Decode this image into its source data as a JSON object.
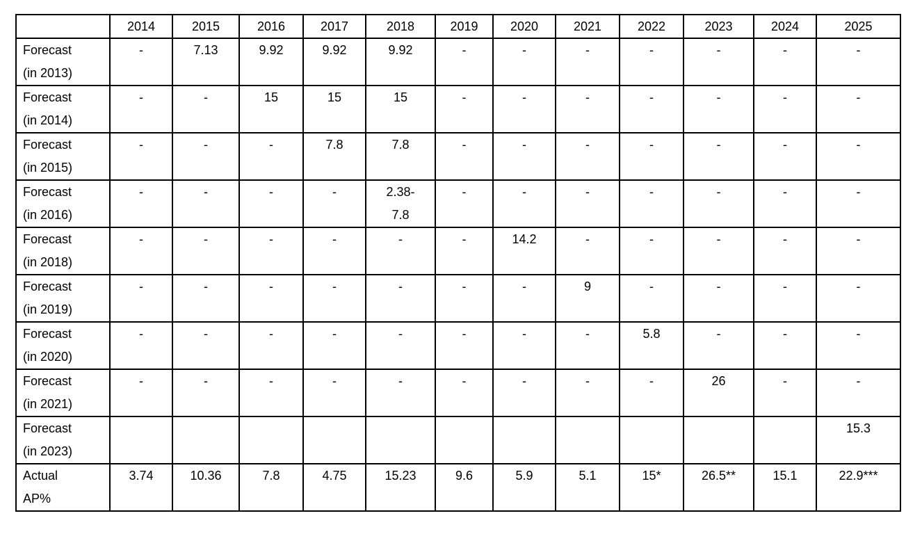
{
  "table": {
    "header": [
      "",
      "2014",
      "2015",
      "2016",
      "2017",
      "2018",
      "2019",
      "2020",
      "2021",
      "2022",
      "2023",
      "2024",
      "2025"
    ],
    "rows": [
      {
        "label": "Forecast\n(in 2013)",
        "values": [
          "-",
          "7.13",
          "9.92",
          "9.92",
          "9.92",
          "-",
          "-",
          "-",
          "-",
          "-",
          "-",
          "-"
        ]
      },
      {
        "label": "Forecast\n(in 2014)",
        "values": [
          "-",
          "-",
          "15",
          "15",
          "15",
          "-",
          "-",
          "-",
          "-",
          "-",
          "-",
          "-"
        ]
      },
      {
        "label": "Forecast\n(in 2015)",
        "values": [
          "-",
          "-",
          "-",
          "7.8",
          "7.8",
          "-",
          "-",
          "-",
          "-",
          "-",
          "-",
          "-"
        ]
      },
      {
        "label": "Forecast\n(in 2016)",
        "values": [
          "-",
          "-",
          "-",
          "-",
          "2.38-\n7.8",
          "-",
          "-",
          "-",
          "-",
          "-",
          "-",
          "-"
        ]
      },
      {
        "label": "Forecast\n(in 2018)",
        "values": [
          "-",
          "-",
          "-",
          "-",
          "-",
          "-",
          "14.2",
          "-",
          "-",
          "-",
          "-",
          "-"
        ]
      },
      {
        "label": "Forecast\n(in 2019)",
        "values": [
          "-",
          "-",
          "-",
          "-",
          "-",
          "-",
          "-",
          "9",
          "-",
          "-",
          "-",
          "-"
        ]
      },
      {
        "label": "Forecast\n(in 2020)",
        "values": [
          "-",
          "-",
          "-",
          "-",
          "-",
          "-",
          "-",
          "-",
          "5.8",
          "-",
          "-",
          "-"
        ]
      },
      {
        "label": "Forecast\n(in 2021)",
        "values": [
          "-",
          "-",
          "-",
          "-",
          "-",
          "-",
          "-",
          "-",
          "-",
          "26",
          "-",
          "-"
        ]
      },
      {
        "label": "Forecast\n(in 2023)",
        "values": [
          "",
          "",
          "",
          "",
          "",
          "",
          "",
          "",
          "",
          "",
          "",
          "15.3"
        ]
      },
      {
        "label": "Actual\nAP%",
        "values": [
          "3.74",
          "10.36",
          "7.8",
          "4.75",
          "15.23",
          "9.6",
          "5.9",
          "5.1",
          "15*",
          "26.5**",
          "15.1",
          "22.9***"
        ]
      }
    ]
  }
}
